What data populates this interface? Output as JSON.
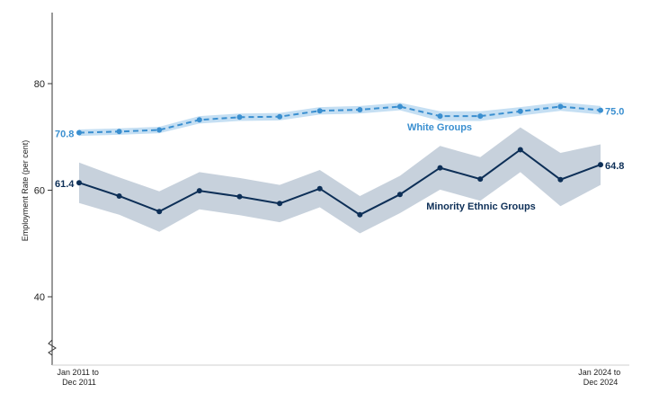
{
  "chart_data": {
    "type": "line",
    "ylabel": "Employment Rate (per cent)",
    "ylim": [
      30,
      92
    ],
    "yticks": [
      40,
      60,
      80
    ],
    "axis_break": true,
    "x_start_label": [
      "Jan 2011 to",
      "Dec 2011"
    ],
    "x_end_label": [
      "Jan 2024 to",
      "Dec 2024"
    ],
    "num_points": 14,
    "series": [
      {
        "name": "White Groups",
        "style": "dashed",
        "color": "#3a8fd0",
        "band_color": "#c5dff3",
        "values": [
          70.8,
          71.0,
          71.3,
          73.2,
          73.7,
          73.8,
          74.9,
          75.1,
          75.7,
          73.9,
          73.9,
          74.8,
          75.7,
          75.0
        ],
        "lower": [
          70.2,
          70.4,
          70.7,
          72.5,
          73.0,
          73.1,
          74.2,
          74.4,
          75.0,
          73.0,
          73.0,
          74.0,
          74.9,
          74.2
        ],
        "upper": [
          71.4,
          71.6,
          71.9,
          73.9,
          74.4,
          74.5,
          75.6,
          75.8,
          76.4,
          74.8,
          74.8,
          75.6,
          76.5,
          75.8
        ],
        "start_label": "70.8",
        "end_label": "75.0"
      },
      {
        "name": "Minority Ethnic Groups",
        "style": "solid",
        "color": "#0d2f57",
        "band_color": "#c7d1dc",
        "values": [
          61.4,
          58.9,
          56.0,
          59.9,
          58.8,
          57.5,
          60.3,
          55.4,
          59.2,
          64.2,
          62.1,
          67.6,
          62.0,
          64.8
        ],
        "lower": [
          57.6,
          55.4,
          52.2,
          56.4,
          55.3,
          54.0,
          56.8,
          51.9,
          55.7,
          60.1,
          58.0,
          63.4,
          57.0,
          61.0
        ],
        "upper": [
          65.2,
          62.4,
          59.8,
          63.4,
          62.3,
          61.0,
          63.8,
          58.9,
          62.7,
          68.3,
          66.2,
          71.8,
          67.0,
          68.6
        ],
        "start_label": "61.4",
        "end_label": "64.8"
      }
    ]
  }
}
